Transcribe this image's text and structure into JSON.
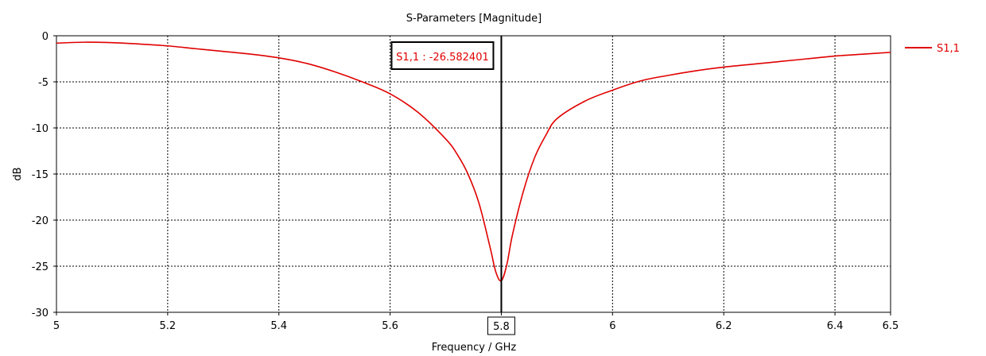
{
  "chart_data": {
    "type": "line",
    "title": "S-Parameters [Magnitude]",
    "xlabel": "Frequency / GHz",
    "ylabel": "dB",
    "xlim": [
      5,
      6.5
    ],
    "ylim": [
      -30,
      0
    ],
    "x_ticks": [
      5,
      5.2,
      5.4,
      5.6,
      5.8,
      6,
      6.2,
      6.4,
      6.5
    ],
    "x_tick_labels": [
      "5",
      "5.2",
      "5.4",
      "5.6",
      "5.8",
      "6",
      "6.2",
      "6.4",
      "6.5"
    ],
    "y_ticks": [
      0,
      -5,
      -10,
      -15,
      -20,
      -25,
      -30
    ],
    "y_tick_labels": [
      "0",
      "-5",
      "-10",
      "-15",
      "-20",
      "-25",
      "-30"
    ],
    "grid": true,
    "legend_position": "top-right",
    "series": [
      {
        "name": "S1,1",
        "color": "#e00000",
        "x": [
          5.0,
          5.05,
          5.1,
          5.15,
          5.2,
          5.25,
          5.3,
          5.35,
          5.4,
          5.45,
          5.5,
          5.55,
          5.6,
          5.65,
          5.7,
          5.72,
          5.74,
          5.76,
          5.78,
          5.79,
          5.8,
          5.81,
          5.82,
          5.84,
          5.86,
          5.88,
          5.9,
          5.95,
          6.0,
          6.05,
          6.1,
          6.15,
          6.2,
          6.25,
          6.3,
          6.35,
          6.4,
          6.45,
          6.5
        ],
        "values": [
          -0.8,
          -0.7,
          -0.75,
          -0.9,
          -1.1,
          -1.4,
          -1.7,
          -2.0,
          -2.4,
          -3.0,
          -3.9,
          -5.0,
          -6.3,
          -8.3,
          -11.2,
          -12.8,
          -15.0,
          -18.2,
          -23.0,
          -25.6,
          -26.58,
          -24.8,
          -21.6,
          -16.8,
          -13.2,
          -10.8,
          -9.0,
          -7.1,
          -5.9,
          -4.9,
          -4.3,
          -3.8,
          -3.4,
          -3.1,
          -2.8,
          -2.5,
          -2.2,
          -2.0,
          -1.8
        ]
      }
    ],
    "marker": {
      "x": 5.8,
      "x_label": "5.8",
      "label": "S1,1 : -26.582401"
    }
  }
}
